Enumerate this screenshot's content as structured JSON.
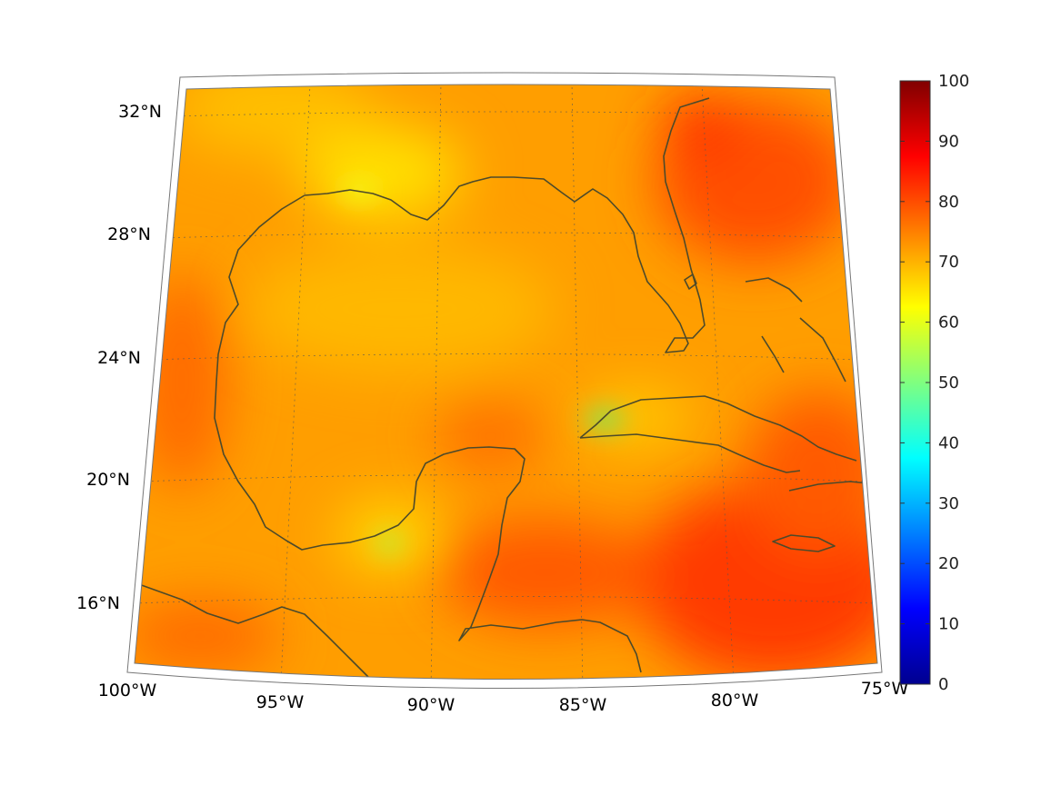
{
  "map": {
    "projection": "conic",
    "lon_range": [
      -100,
      -75
    ],
    "lat_range": [
      14,
      32
    ],
    "grid_lines": "dotted",
    "coastline_color": "#4d4a2a",
    "lat_labels": [
      "32°N",
      "28°N",
      "24°N",
      "20°N",
      "16°N"
    ],
    "lat_values": [
      32,
      28,
      24,
      20,
      16
    ],
    "lon_labels": [
      "100°W",
      "95°W",
      "90°W",
      "85°W",
      "80°W",
      "75°W"
    ],
    "lon_values": [
      -100,
      -95,
      -90,
      -85,
      -80,
      -75
    ]
  },
  "colorbar": {
    "colormap": "jet",
    "range": [
      0,
      100
    ],
    "tick_labels": [
      "100",
      "90",
      "80",
      "70",
      "60",
      "50",
      "40",
      "30",
      "20",
      "10",
      "0"
    ],
    "tick_values": [
      100,
      90,
      80,
      70,
      60,
      50,
      40,
      30,
      20,
      10,
      0
    ],
    "position": "right"
  },
  "field": {
    "dominant_range": [
      62,
      90
    ],
    "palette": {
      "base": "#ff9e00",
      "high": "#ff4a00",
      "low": "#ffd800",
      "min_spot": "#7ee65a"
    }
  }
}
